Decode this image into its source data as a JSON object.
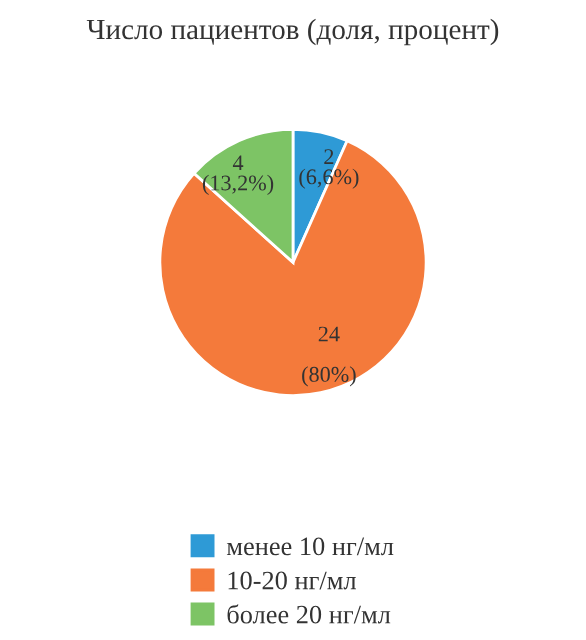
{
  "chart_data": {
    "type": "pie",
    "title": "Число пациентов (доля, процент)",
    "categories": [
      "менее 10 нг/мл",
      "10-20 нг/мл",
      "более 20 нг/мл"
    ],
    "values": [
      2,
      24,
      4
    ],
    "value_labels": [
      "2\n(6,6%)",
      "24\n\n(80%)",
      "4\n(13,2%)"
    ],
    "colors": [
      "#2e9ad6",
      "#f47a3b",
      "#7dc465"
    ],
    "legend": "bottom"
  }
}
